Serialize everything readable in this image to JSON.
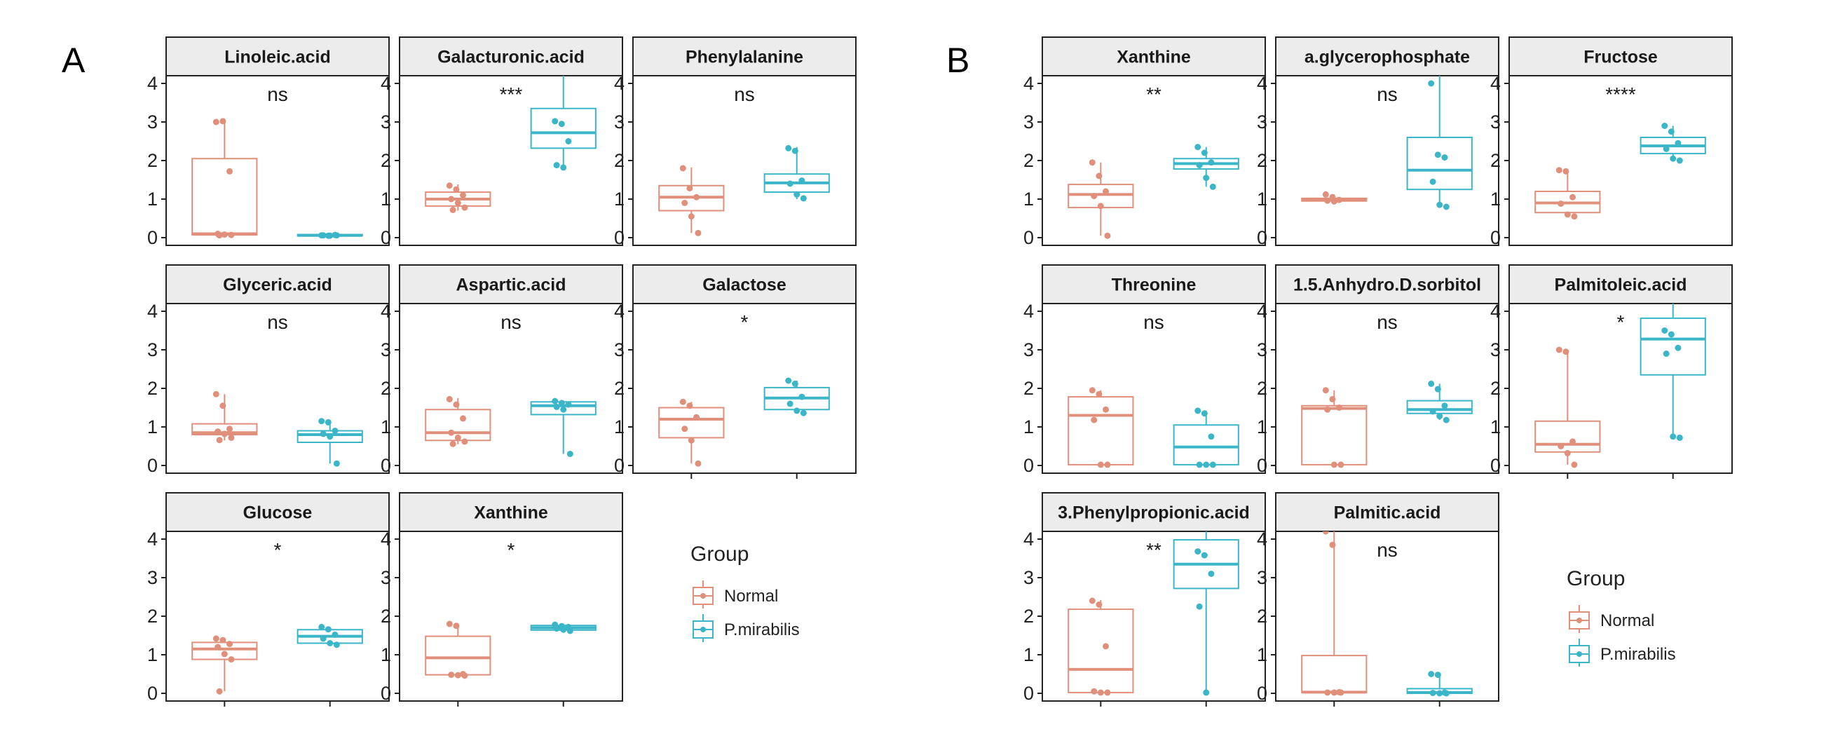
{
  "colors": {
    "Normal": "#E0907A",
    "P.mirabilis": "#3BB6C8"
  },
  "chart_data": [
    {
      "type": "boxplot",
      "panel": "A",
      "groups": [
        "Normal",
        "P.mirabilis"
      ],
      "ylim": [
        -0.2,
        4.2
      ],
      "yticks": [
        0,
        1,
        2,
        3,
        4
      ],
      "legend": {
        "title": "Group",
        "entries": [
          "Normal",
          "P.mirabilis"
        ],
        "placement": "bottom-right"
      },
      "facets": [
        {
          "title": "Linoleic.acid",
          "sig": "ns",
          "boxes": [
            {
              "group": "Normal",
              "min": 0.05,
              "q1": 0.07,
              "median": 0.1,
              "q3": 2.05,
              "max": 3.05,
              "points": [
                3.0,
                3.02,
                1.72,
                0.1,
                0.08,
                0.07,
                0.06
              ]
            },
            {
              "group": "P.mirabilis",
              "min": 0.04,
              "q1": 0.05,
              "median": 0.06,
              "q3": 0.08,
              "max": 0.09,
              "points": [
                0.06,
                0.05,
                0.07,
                0.06,
                0.05,
                0.06
              ]
            }
          ]
        },
        {
          "title": "Galacturonic.acid",
          "sig": "***",
          "boxes": [
            {
              "group": "Normal",
              "min": 0.7,
              "q1": 0.82,
              "median": 1.0,
              "q3": 1.18,
              "max": 1.38,
              "points": [
                1.35,
                1.25,
                1.1,
                1.0,
                0.9,
                0.78,
                0.72
              ]
            },
            {
              "group": "P.mirabilis",
              "min": 1.82,
              "q1": 2.32,
              "median": 2.72,
              "q3": 3.35,
              "max": 4.2,
              "points": [
                3.02,
                2.95,
                2.5,
                1.88,
                1.82
              ]
            }
          ]
        },
        {
          "title": "Phenylalanine",
          "sig": "ns",
          "boxes": [
            {
              "group": "Normal",
              "min": 0.12,
              "q1": 0.7,
              "median": 1.05,
              "q3": 1.35,
              "max": 1.82,
              "points": [
                1.8,
                1.28,
                1.05,
                0.9,
                0.55,
                0.12
              ]
            },
            {
              "group": "P.mirabilis",
              "min": 1.0,
              "q1": 1.18,
              "median": 1.42,
              "q3": 1.65,
              "max": 2.35,
              "points": [
                2.32,
                2.25,
                1.48,
                1.4,
                1.12,
                1.02
              ]
            }
          ]
        },
        {
          "title": "Glyceric.acid",
          "sig": "ns",
          "boxes": [
            {
              "group": "Normal",
              "min": 0.65,
              "q1": 0.8,
              "median": 0.85,
              "q3": 1.08,
              "max": 1.85,
              "points": [
                1.85,
                1.55,
                0.95,
                0.88,
                0.82,
                0.72,
                0.66
              ]
            },
            {
              "group": "P.mirabilis",
              "min": 0.05,
              "q1": 0.6,
              "median": 0.8,
              "q3": 0.9,
              "max": 1.15,
              "points": [
                1.15,
                1.12,
                0.9,
                0.82,
                0.75,
                0.05
              ]
            }
          ]
        },
        {
          "title": "Aspartic.acid",
          "sig": "ns",
          "boxes": [
            {
              "group": "Normal",
              "min": 0.55,
              "q1": 0.65,
              "median": 0.85,
              "q3": 1.45,
              "max": 1.75,
              "points": [
                1.72,
                1.58,
                1.22,
                0.85,
                0.72,
                0.62,
                0.56
              ]
            },
            {
              "group": "P.mirabilis",
              "min": 0.3,
              "q1": 1.32,
              "median": 1.55,
              "q3": 1.65,
              "max": 1.68,
              "points": [
                1.67,
                1.62,
                1.58,
                1.52,
                1.45,
                0.3
              ]
            }
          ]
        },
        {
          "title": "Galactose",
          "sig": "*",
          "boxes": [
            {
              "group": "Normal",
              "min": 0.05,
              "q1": 0.72,
              "median": 1.2,
              "q3": 1.5,
              "max": 1.65,
              "points": [
                1.65,
                1.55,
                1.25,
                0.95,
                0.65,
                0.05
              ]
            },
            {
              "group": "P.mirabilis",
              "min": 1.35,
              "q1": 1.45,
              "median": 1.75,
              "q3": 2.02,
              "max": 2.2,
              "points": [
                2.2,
                2.12,
                1.78,
                1.6,
                1.42,
                1.36
              ]
            }
          ]
        },
        {
          "title": "Glucose",
          "sig": "*",
          "boxes": [
            {
              "group": "Normal",
              "min": 0.05,
              "q1": 0.88,
              "median": 1.15,
              "q3": 1.32,
              "max": 1.42,
              "points": [
                1.42,
                1.38,
                1.28,
                1.2,
                1.02,
                0.88,
                0.05
              ]
            },
            {
              "group": "P.mirabilis",
              "min": 1.25,
              "q1": 1.3,
              "median": 1.48,
              "q3": 1.65,
              "max": 1.72,
              "points": [
                1.72,
                1.66,
                1.52,
                1.42,
                1.3,
                1.26
              ]
            }
          ]
        },
        {
          "title": "Xanthine",
          "sig": "*",
          "boxes": [
            {
              "group": "Normal",
              "min": 0.45,
              "q1": 0.48,
              "median": 0.92,
              "q3": 1.48,
              "max": 1.82,
              "points": [
                1.8,
                1.75,
                0.5,
                0.48,
                0.47,
                0.46
              ]
            },
            {
              "group": "P.mirabilis",
              "min": 1.6,
              "q1": 1.64,
              "median": 1.7,
              "q3": 1.76,
              "max": 1.8,
              "points": [
                1.78,
                1.74,
                1.72,
                1.68,
                1.65,
                1.62
              ]
            }
          ]
        }
      ]
    },
    {
      "type": "boxplot",
      "panel": "B",
      "groups": [
        "Normal",
        "P.mirabilis"
      ],
      "ylim": [
        -0.2,
        4.2
      ],
      "yticks": [
        0,
        1,
        2,
        3,
        4
      ],
      "legend": {
        "title": "Group",
        "entries": [
          "Normal",
          "P.mirabilis"
        ],
        "placement": "bottom-right"
      },
      "facets": [
        {
          "title": "Xanthine",
          "sig": "**",
          "boxes": [
            {
              "group": "Normal",
              "min": 0.05,
              "q1": 0.78,
              "median": 1.12,
              "q3": 1.38,
              "max": 1.95,
              "points": [
                1.95,
                1.6,
                1.2,
                1.08,
                0.82,
                0.05
              ]
            },
            {
              "group": "P.mirabilis",
              "min": 1.32,
              "q1": 1.78,
              "median": 1.92,
              "q3": 2.05,
              "max": 2.35,
              "points": [
                2.35,
                2.2,
                1.95,
                1.88,
                1.55,
                1.32
              ]
            }
          ]
        },
        {
          "title": "a.glycerophosphate",
          "sig": "ns",
          "boxes": [
            {
              "group": "Normal",
              "min": 0.92,
              "q1": 0.95,
              "median": 0.98,
              "q3": 1.02,
              "max": 1.12,
              "points": [
                1.12,
                1.05,
                0.98,
                0.96,
                0.94
              ]
            },
            {
              "group": "P.mirabilis",
              "min": 0.8,
              "q1": 1.25,
              "median": 1.75,
              "q3": 2.6,
              "max": 4.2,
              "points": [
                4.0,
                2.15,
                2.08,
                1.45,
                0.85,
                0.8
              ]
            }
          ]
        },
        {
          "title": "Fructose",
          "sig": "****",
          "boxes": [
            {
              "group": "Normal",
              "min": 0.55,
              "q1": 0.65,
              "median": 0.9,
              "q3": 1.2,
              "max": 1.75,
              "points": [
                1.75,
                1.72,
                1.05,
                0.88,
                0.6,
                0.55
              ]
            },
            {
              "group": "P.mirabilis",
              "min": 2.0,
              "q1": 2.18,
              "median": 2.38,
              "q3": 2.6,
              "max": 2.9,
              "points": [
                2.9,
                2.75,
                2.45,
                2.3,
                2.05,
                2.0
              ]
            }
          ]
        },
        {
          "title": "Threonine",
          "sig": "ns",
          "boxes": [
            {
              "group": "Normal",
              "min": 0.02,
              "q1": 0.02,
              "median": 1.3,
              "q3": 1.78,
              "max": 1.95,
              "points": [
                1.95,
                1.85,
                1.45,
                1.18,
                0.02,
                0.02
              ]
            },
            {
              "group": "P.mirabilis",
              "min": 0.02,
              "q1": 0.02,
              "median": 0.48,
              "q3": 1.05,
              "max": 1.42,
              "points": [
                1.42,
                1.35,
                0.75,
                0.02,
                0.02,
                0.02
              ]
            }
          ]
        },
        {
          "title": "1.5.Anhydro.D.sorbitol",
          "sig": "ns",
          "boxes": [
            {
              "group": "Normal",
              "min": 0.02,
              "q1": 0.02,
              "median": 1.48,
              "q3": 1.55,
              "max": 1.95,
              "points": [
                1.95,
                1.72,
                1.5,
                1.45,
                0.02,
                0.02
              ]
            },
            {
              "group": "P.mirabilis",
              "min": 1.18,
              "q1": 1.35,
              "median": 1.45,
              "q3": 1.68,
              "max": 2.12,
              "points": [
                2.12,
                1.98,
                1.55,
                1.4,
                1.28,
                1.18
              ]
            }
          ]
        },
        {
          "title": "Palmitoleic.acid",
          "sig": "*",
          "boxes": [
            {
              "group": "Normal",
              "min": 0.02,
              "q1": 0.35,
              "median": 0.55,
              "q3": 1.15,
              "max": 3.0,
              "points": [
                3.0,
                2.95,
                0.62,
                0.5,
                0.32,
                0.02
              ]
            },
            {
              "group": "P.mirabilis",
              "min": 0.72,
              "q1": 2.35,
              "median": 3.28,
              "q3": 3.82,
              "max": 4.2,
              "points": [
                3.5,
                3.4,
                3.05,
                2.9,
                0.75,
                0.72
              ]
            }
          ]
        },
        {
          "title": "3.Phenylpropionic.acid",
          "sig": "**",
          "boxes": [
            {
              "group": "Normal",
              "min": 0.02,
              "q1": 0.02,
              "median": 0.62,
              "q3": 2.18,
              "max": 2.42,
              "points": [
                2.4,
                2.3,
                1.22,
                0.05,
                0.02,
                0.02
              ]
            },
            {
              "group": "P.mirabilis",
              "min": 0.02,
              "q1": 2.72,
              "median": 3.35,
              "q3": 3.98,
              "max": 4.2,
              "points": [
                3.68,
                3.58,
                3.1,
                2.25,
                0.02
              ]
            }
          ]
        },
        {
          "title": "Palmitic.acid",
          "sig": "ns",
          "boxes": [
            {
              "group": "Normal",
              "min": 0.02,
              "q1": 0.02,
              "median": 0.03,
              "q3": 0.98,
              "max": 4.2,
              "points": [
                4.2,
                3.85,
                0.03,
                0.02,
                0.02,
                0.02
              ]
            },
            {
              "group": "P.mirabilis",
              "min": 0.0,
              "q1": 0.0,
              "median": 0.02,
              "q3": 0.12,
              "max": 0.5,
              "points": [
                0.5,
                0.48,
                0.02,
                0.01,
                0.0,
                0.0
              ]
            }
          ]
        }
      ]
    }
  ]
}
